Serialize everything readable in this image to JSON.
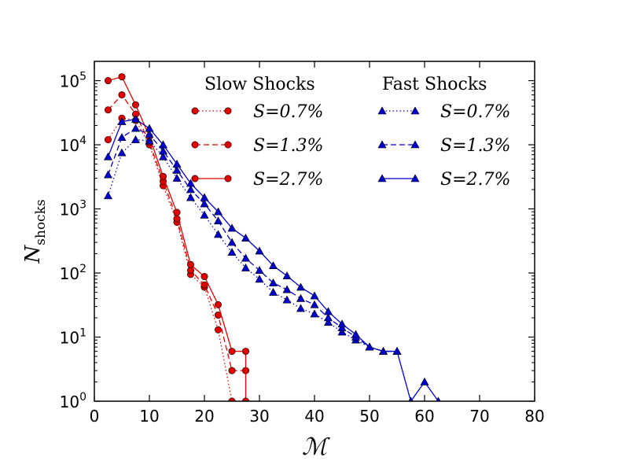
{
  "chart_data": {
    "type": "line",
    "xlabel": "ℳ",
    "ylabel_main": "N",
    "ylabel_sub": "shocks",
    "xlim": [
      0,
      80
    ],
    "ylim": [
      1,
      200000
    ],
    "yscale": "log",
    "x_ticks": [
      0,
      10,
      20,
      30,
      40,
      50,
      60,
      70,
      80
    ],
    "y_ticks": [
      {
        "value": 1,
        "base": "10",
        "exp": "0"
      },
      {
        "value": 10,
        "base": "10",
        "exp": "1"
      },
      {
        "value": 100,
        "base": "10",
        "exp": "2"
      },
      {
        "value": 1000,
        "base": "10",
        "exp": "3"
      },
      {
        "value": 10000,
        "base": "10",
        "exp": "4"
      },
      {
        "value": 100000,
        "base": "10",
        "exp": "5"
      }
    ],
    "grid": false,
    "legend": {
      "placement": "top-right",
      "group_titles": [
        "Slow Shocks",
        "Fast Shocks"
      ]
    },
    "colors": {
      "slow": "#e00000",
      "fast": "#0000cc"
    },
    "series": [
      {
        "name": "S=0.7%",
        "group": "slow",
        "style": "dotted",
        "marker": "circle",
        "x": [
          2.5,
          5,
          7.5,
          10,
          12.5,
          15,
          17.5,
          20,
          22.5,
          25
        ],
        "y": [
          12000,
          26000,
          24000,
          10000,
          2300,
          620,
          95,
          60,
          13,
          1
        ]
      },
      {
        "name": "S=1.3%",
        "group": "slow",
        "style": "dashed",
        "marker": "circle",
        "x": [
          2.5,
          5,
          7.5,
          10,
          12.5,
          15,
          17.5,
          20,
          22.5,
          25,
          27.5
        ],
        "y": [
          35000,
          60000,
          30000,
          11000,
          2700,
          700,
          110,
          65,
          22,
          3,
          3
        ]
      },
      {
        "name": "S=2.7%",
        "group": "slow",
        "style": "solid",
        "marker": "circle",
        "x": [
          2.5,
          5,
          7.5,
          10,
          12.5,
          15,
          17.5,
          20,
          22.5,
          25,
          27.5,
          27.5
        ],
        "y": [
          100000,
          115000,
          42000,
          13500,
          3200,
          880,
          135,
          88,
          32,
          6,
          6,
          1
        ]
      },
      {
        "name": "S=0.7%",
        "group": "fast",
        "style": "dotted",
        "marker": "triangle",
        "x": [
          2.5,
          5,
          7.5,
          10,
          12.5,
          15,
          17.5,
          20,
          22.5,
          25,
          27.5,
          30,
          32.5,
          35,
          37.5,
          40,
          42.5,
          45,
          47.5,
          50,
          52.5,
          55
        ],
        "y": [
          1600,
          7500,
          12000,
          11500,
          6500,
          3000,
          1500,
          800,
          400,
          210,
          120,
          80,
          50,
          38,
          28,
          23,
          17,
          12,
          9,
          7,
          6,
          6
        ]
      },
      {
        "name": "S=1.3%",
        "group": "fast",
        "style": "dashed",
        "marker": "triangle",
        "x": [
          2.5,
          5,
          7.5,
          10,
          12.5,
          15,
          17.5,
          20,
          22.5,
          25,
          27.5,
          30,
          32.5,
          35,
          37.5,
          40,
          42.5,
          45,
          47.5,
          50,
          52.5,
          55
        ],
        "y": [
          3400,
          13000,
          18000,
          14500,
          8000,
          4000,
          2000,
          1200,
          650,
          300,
          170,
          110,
          70,
          55,
          40,
          32,
          20,
          14,
          10,
          7,
          6,
          6
        ]
      },
      {
        "name": "S=2.7%",
        "group": "fast",
        "style": "solid",
        "marker": "triangle",
        "x": [
          2.5,
          5,
          7.5,
          10,
          12.5,
          15,
          17.5,
          20,
          22.5,
          25,
          27.5,
          30,
          32.5,
          35,
          37.5,
          40,
          42.5,
          45,
          47.5,
          50,
          52.5,
          55,
          57.5,
          60,
          62.5
        ],
        "y": [
          6500,
          23000,
          25000,
          18000,
          10000,
          5000,
          2500,
          1500,
          900,
          500,
          350,
          220,
          130,
          90,
          60,
          44,
          25,
          16,
          11,
          7,
          6,
          6,
          1,
          2,
          1
        ]
      }
    ]
  }
}
